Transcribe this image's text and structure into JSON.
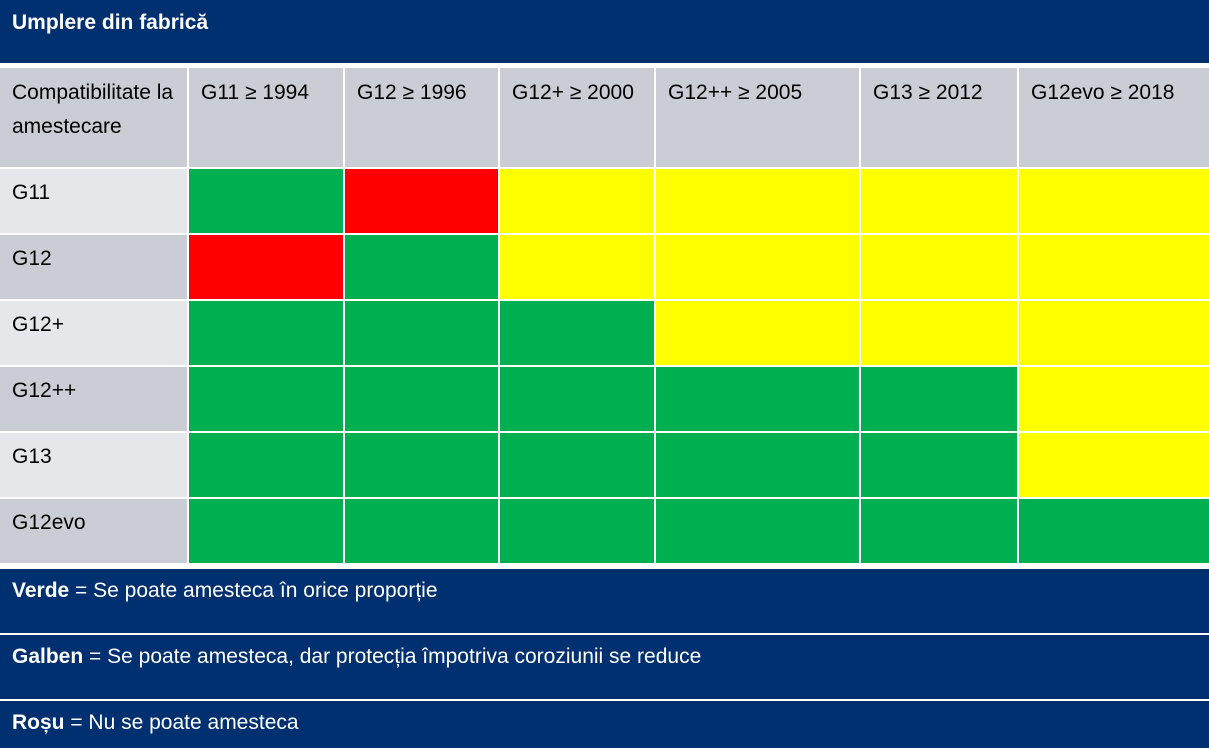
{
  "title": "Umplere din fabrică",
  "table": {
    "corner_label": "Compatibilitate la amestecare",
    "columns": [
      "G11 ≥ 1994",
      "G12 ≥ 1996",
      "G12+ ≥ 2000",
      "G12++ ≥ 2005",
      "G13 ≥ 2012",
      "G12evo ≥ 2018"
    ],
    "rows": [
      {
        "label": "G11",
        "cells": [
          "green",
          "red",
          "yellow",
          "yellow",
          "yellow",
          "yellow"
        ]
      },
      {
        "label": "G12",
        "cells": [
          "red",
          "green",
          "yellow",
          "yellow",
          "yellow",
          "yellow"
        ]
      },
      {
        "label": "G12+",
        "cells": [
          "green",
          "green",
          "green",
          "yellow",
          "yellow",
          "yellow"
        ]
      },
      {
        "label": "G12++",
        "cells": [
          "green",
          "green",
          "green",
          "green",
          "green",
          "yellow"
        ]
      },
      {
        "label": "G13",
        "cells": [
          "green",
          "green",
          "green",
          "green",
          "green",
          "yellow"
        ]
      },
      {
        "label": "G12evo",
        "cells": [
          "green",
          "green",
          "green",
          "green",
          "green",
          "green"
        ]
      }
    ]
  },
  "colors": {
    "green": "#00b050",
    "red": "#ff0000",
    "yellow": "#ffff00",
    "navy": "#003070"
  },
  "legend": [
    {
      "term": "Verde",
      "text": " = Se poate amesteca în orice proporție"
    },
    {
      "term": "Galben",
      "text": " = Se poate amesteca, dar protecția împotriva coroziunii se reduce"
    },
    {
      "term": "Roșu",
      "text": " = Nu se poate amesteca"
    }
  ]
}
